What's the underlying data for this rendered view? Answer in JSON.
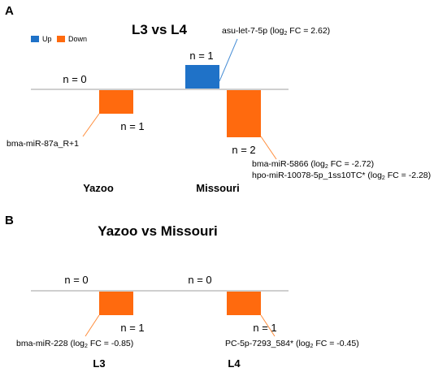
{
  "colors": {
    "up": "#1f72c8",
    "down": "#ff6a0e",
    "baseline": "#bfbfbf",
    "leader_up": "#4a8fd6",
    "leader_down": "#ff8c3a"
  },
  "chart_data": [
    {
      "panel": "A",
      "type": "bar",
      "title": "L3 vs L4",
      "legend": {
        "placement": "top-left",
        "entries": [
          {
            "name": "Up",
            "color": "#1f72c8"
          },
          {
            "name": "Down",
            "color": "#ff6a0e"
          }
        ]
      },
      "categories": [
        "Yazoo",
        "Missouri"
      ],
      "series": [
        {
          "name": "Up",
          "values": [
            0,
            1
          ],
          "count_labels": [
            "n = 0",
            "n = 1"
          ]
        },
        {
          "name": "Down",
          "values": [
            1,
            2
          ],
          "count_labels": [
            "n = 1",
            "n = 2"
          ]
        }
      ],
      "annotations": [
        {
          "text": "asu-let-7-5p  (log",
          "sub": "2",
          "tail": " FC = 2.62)"
        },
        {
          "text": "bma-miR-87a_R+1",
          "sub": "",
          "tail": ""
        },
        {
          "text": "bma-miR-5866 (log",
          "sub": "2",
          "tail": " FC = -2.72)"
        },
        {
          "text": "hpo-miR-10078-5p_1ss10TC* (log",
          "sub": "2",
          "tail": " FC = -2.28)"
        }
      ]
    },
    {
      "panel": "B",
      "type": "bar",
      "title": "Yazoo vs Missouri",
      "categories": [
        "L3",
        "L4"
      ],
      "series": [
        {
          "name": "Up",
          "values": [
            0,
            0
          ],
          "count_labels": [
            "n = 0",
            "n = 0"
          ]
        },
        {
          "name": "Down",
          "values": [
            1,
            1
          ],
          "count_labels": [
            "n = 1",
            "n = 1"
          ]
        }
      ],
      "annotations": [
        {
          "text": "bma-miR-228 (log",
          "sub": "2",
          "tail": " FC = -0.85)"
        },
        {
          "text": "PC-5p-7293_584* (log",
          "sub": "2",
          "tail": " FC = -0.45)"
        }
      ]
    }
  ]
}
